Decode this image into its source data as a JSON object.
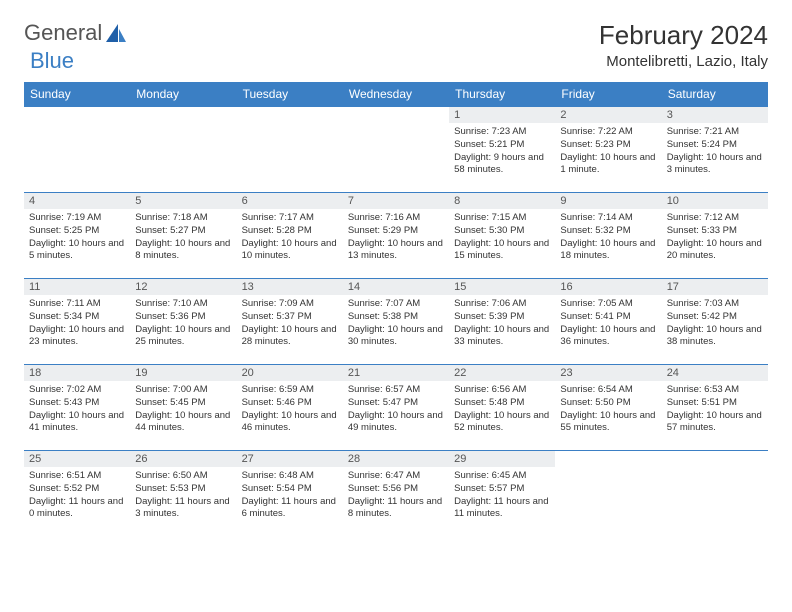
{
  "logo": {
    "text1": "General",
    "text2": "Blue"
  },
  "title": "February 2024",
  "location": "Montelibretti, Lazio, Italy",
  "colors": {
    "header_bg": "#3b7fc4",
    "header_text": "#ffffff",
    "daynum_bg": "#eceef0",
    "border": "#3b7fc4"
  },
  "dayHeaders": [
    "Sunday",
    "Monday",
    "Tuesday",
    "Wednesday",
    "Thursday",
    "Friday",
    "Saturday"
  ],
  "days": {
    "1": {
      "sunrise": "7:23 AM",
      "sunset": "5:21 PM",
      "daylight": "9 hours and 58 minutes."
    },
    "2": {
      "sunrise": "7:22 AM",
      "sunset": "5:23 PM",
      "daylight": "10 hours and 1 minute."
    },
    "3": {
      "sunrise": "7:21 AM",
      "sunset": "5:24 PM",
      "daylight": "10 hours and 3 minutes."
    },
    "4": {
      "sunrise": "7:19 AM",
      "sunset": "5:25 PM",
      "daylight": "10 hours and 5 minutes."
    },
    "5": {
      "sunrise": "7:18 AM",
      "sunset": "5:27 PM",
      "daylight": "10 hours and 8 minutes."
    },
    "6": {
      "sunrise": "7:17 AM",
      "sunset": "5:28 PM",
      "daylight": "10 hours and 10 minutes."
    },
    "7": {
      "sunrise": "7:16 AM",
      "sunset": "5:29 PM",
      "daylight": "10 hours and 13 minutes."
    },
    "8": {
      "sunrise": "7:15 AM",
      "sunset": "5:30 PM",
      "daylight": "10 hours and 15 minutes."
    },
    "9": {
      "sunrise": "7:14 AM",
      "sunset": "5:32 PM",
      "daylight": "10 hours and 18 minutes."
    },
    "10": {
      "sunrise": "7:12 AM",
      "sunset": "5:33 PM",
      "daylight": "10 hours and 20 minutes."
    },
    "11": {
      "sunrise": "7:11 AM",
      "sunset": "5:34 PM",
      "daylight": "10 hours and 23 minutes."
    },
    "12": {
      "sunrise": "7:10 AM",
      "sunset": "5:36 PM",
      "daylight": "10 hours and 25 minutes."
    },
    "13": {
      "sunrise": "7:09 AM",
      "sunset": "5:37 PM",
      "daylight": "10 hours and 28 minutes."
    },
    "14": {
      "sunrise": "7:07 AM",
      "sunset": "5:38 PM",
      "daylight": "10 hours and 30 minutes."
    },
    "15": {
      "sunrise": "7:06 AM",
      "sunset": "5:39 PM",
      "daylight": "10 hours and 33 minutes."
    },
    "16": {
      "sunrise": "7:05 AM",
      "sunset": "5:41 PM",
      "daylight": "10 hours and 36 minutes."
    },
    "17": {
      "sunrise": "7:03 AM",
      "sunset": "5:42 PM",
      "daylight": "10 hours and 38 minutes."
    },
    "18": {
      "sunrise": "7:02 AM",
      "sunset": "5:43 PM",
      "daylight": "10 hours and 41 minutes."
    },
    "19": {
      "sunrise": "7:00 AM",
      "sunset": "5:45 PM",
      "daylight": "10 hours and 44 minutes."
    },
    "20": {
      "sunrise": "6:59 AM",
      "sunset": "5:46 PM",
      "daylight": "10 hours and 46 minutes."
    },
    "21": {
      "sunrise": "6:57 AM",
      "sunset": "5:47 PM",
      "daylight": "10 hours and 49 minutes."
    },
    "22": {
      "sunrise": "6:56 AM",
      "sunset": "5:48 PM",
      "daylight": "10 hours and 52 minutes."
    },
    "23": {
      "sunrise": "6:54 AM",
      "sunset": "5:50 PM",
      "daylight": "10 hours and 55 minutes."
    },
    "24": {
      "sunrise": "6:53 AM",
      "sunset": "5:51 PM",
      "daylight": "10 hours and 57 minutes."
    },
    "25": {
      "sunrise": "6:51 AM",
      "sunset": "5:52 PM",
      "daylight": "11 hours and 0 minutes."
    },
    "26": {
      "sunrise": "6:50 AM",
      "sunset": "5:53 PM",
      "daylight": "11 hours and 3 minutes."
    },
    "27": {
      "sunrise": "6:48 AM",
      "sunset": "5:54 PM",
      "daylight": "11 hours and 6 minutes."
    },
    "28": {
      "sunrise": "6:47 AM",
      "sunset": "5:56 PM",
      "daylight": "11 hours and 8 minutes."
    },
    "29": {
      "sunrise": "6:45 AM",
      "sunset": "5:57 PM",
      "daylight": "11 hours and 11 minutes."
    }
  },
  "layout": {
    "firstDayOffset": 4,
    "daysInMonth": 29,
    "columns": 7
  },
  "labels": {
    "sunrise": "Sunrise: ",
    "sunset": "Sunset: ",
    "daylight": "Daylight: "
  }
}
